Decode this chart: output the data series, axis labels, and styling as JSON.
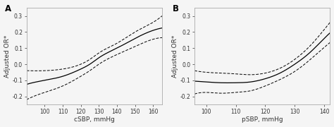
{
  "panel_A": {
    "label": "A",
    "xlabel": "cSBP, mmHg",
    "ylabel": "Adjusted OR*",
    "xlim": [
      90,
      165
    ],
    "ylim": [
      -0.25,
      0.35
    ],
    "xticks": [
      100,
      110,
      120,
      130,
      140,
      150,
      160
    ],
    "yticks": [
      -0.2,
      -0.1,
      0.0,
      0.1,
      0.2,
      0.3
    ],
    "mean_pts_x": [
      90,
      100,
      110,
      120,
      125,
      130,
      140,
      150,
      160,
      165
    ],
    "mean_pts_y": [
      -0.125,
      -0.1,
      -0.075,
      -0.03,
      0.0,
      0.04,
      0.1,
      0.16,
      0.21,
      0.225
    ],
    "upper_pts_x": [
      90,
      100,
      110,
      120,
      125,
      130,
      140,
      150,
      160,
      165
    ],
    "upper_pts_y": [
      -0.04,
      -0.04,
      -0.03,
      0.0,
      0.03,
      0.07,
      0.13,
      0.2,
      0.26,
      0.3
    ],
    "lower_pts_x": [
      90,
      100,
      110,
      120,
      125,
      130,
      140,
      150,
      160,
      165
    ],
    "lower_pts_y": [
      -0.22,
      -0.175,
      -0.135,
      -0.075,
      -0.04,
      0.0,
      0.06,
      0.11,
      0.155,
      0.165
    ]
  },
  "panel_B": {
    "label": "B",
    "xlabel": "pSBP, mmHg",
    "ylabel": "Adjusted OR*",
    "xlim": [
      96,
      142
    ],
    "ylim": [
      -0.25,
      0.35
    ],
    "xticks": [
      100,
      110,
      120,
      130,
      140
    ],
    "yticks": [
      -0.2,
      -0.1,
      0.0,
      0.1,
      0.2,
      0.3
    ],
    "mean_pts_x": [
      96,
      100,
      105,
      110,
      115,
      120,
      125,
      130,
      135,
      140,
      142
    ],
    "mean_pts_y": [
      -0.105,
      -0.11,
      -0.115,
      -0.115,
      -0.11,
      -0.09,
      -0.055,
      0.0,
      0.07,
      0.16,
      0.195
    ],
    "upper_pts_x": [
      96,
      100,
      105,
      110,
      115,
      120,
      125,
      130,
      135,
      140,
      142
    ],
    "upper_pts_y": [
      -0.04,
      -0.05,
      -0.055,
      -0.06,
      -0.065,
      -0.055,
      -0.025,
      0.03,
      0.11,
      0.215,
      0.26
    ],
    "lower_pts_x": [
      96,
      100,
      105,
      110,
      115,
      120,
      125,
      130,
      135,
      140,
      142
    ],
    "lower_pts_y": [
      -0.185,
      -0.175,
      -0.18,
      -0.175,
      -0.165,
      -0.135,
      -0.095,
      -0.045,
      0.025,
      0.105,
      0.135
    ]
  },
  "bg_color": "#f5f5f5",
  "line_color": "#000000",
  "ci_color": "#000000",
  "spine_color": "#aaaaaa",
  "tick_color": "#333333",
  "fontsize_label": 6.5,
  "fontsize_tick": 5.5,
  "fontsize_panel": 8.5
}
